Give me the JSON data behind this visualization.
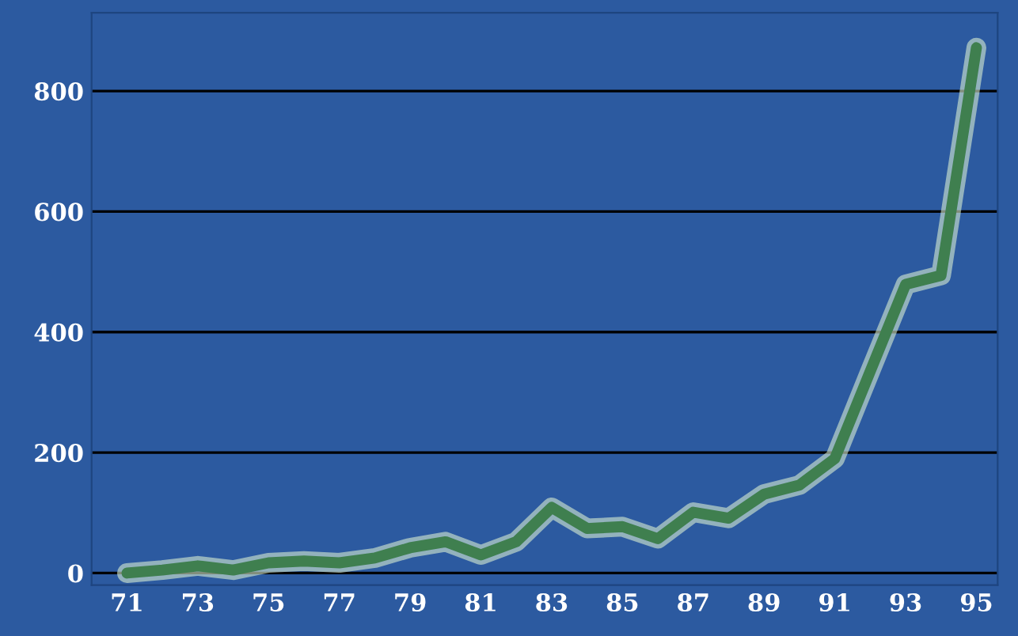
{
  "chart_data": {
    "type": "line",
    "x": [
      71,
      72,
      73,
      74,
      75,
      76,
      77,
      78,
      79,
      80,
      81,
      82,
      83,
      84,
      85,
      86,
      87,
      88,
      89,
      90,
      91,
      92,
      93,
      94,
      95
    ],
    "series": [
      {
        "color": "#3f7f4f",
        "values": [
          0,
          5,
          12,
          5,
          17,
          20,
          17,
          25,
          42,
          52,
          30,
          52,
          109,
          74,
          77,
          57,
          101,
          91,
          131,
          146,
          190,
          335,
          479,
          494,
          872
        ]
      }
    ],
    "xlim": [
      70,
      95.6
    ],
    "xticks": [
      71,
      73,
      75,
      77,
      79,
      81,
      83,
      85,
      87,
      89,
      91,
      93,
      95
    ],
    "ylim": [
      -20,
      930
    ],
    "yticks": [
      0,
      200,
      400,
      600,
      800
    ],
    "grid": "y",
    "marker": "none",
    "line_style": "solid"
  }
}
